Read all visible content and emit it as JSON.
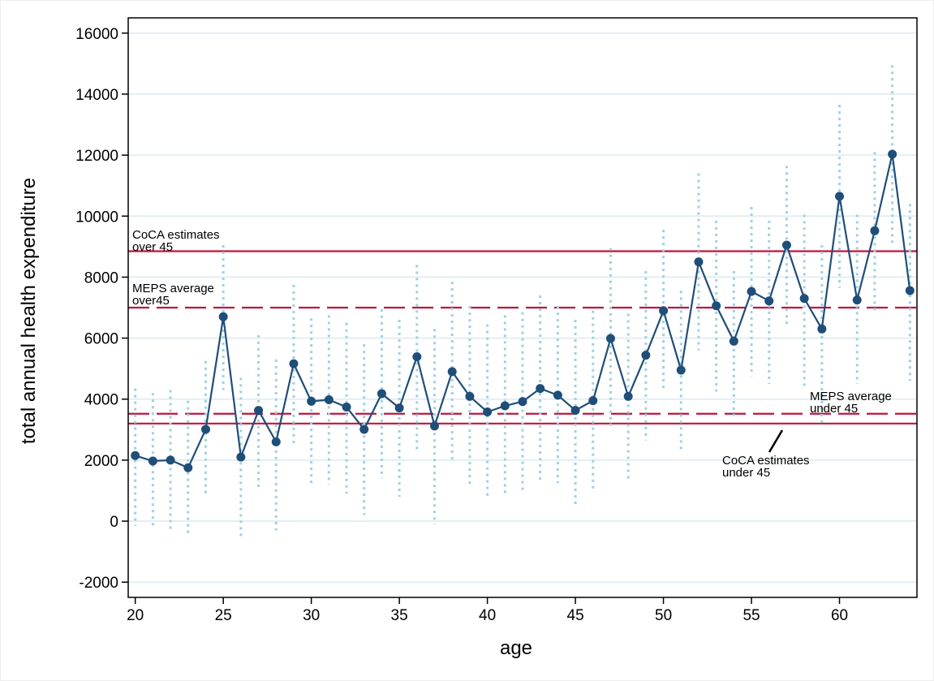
{
  "chart_data": {
    "type": "line",
    "title": "",
    "xlabel": "age",
    "ylabel": "total annual health expenditure",
    "xlim": [
      19.6,
      64.4
    ],
    "ylim": [
      -2500,
      16500
    ],
    "xticks": [
      20,
      25,
      30,
      35,
      40,
      45,
      50,
      55,
      60
    ],
    "yticks": [
      -2000,
      0,
      2000,
      4000,
      6000,
      8000,
      10000,
      12000,
      14000,
      16000
    ],
    "grid": true,
    "colors": {
      "series": "#1f4e79",
      "ci": "#9fd0e4",
      "reference": "#c0143c",
      "grid": "#e4eef2"
    },
    "x": [
      20,
      21,
      22,
      23,
      24,
      25,
      26,
      27,
      28,
      29,
      30,
      31,
      32,
      33,
      34,
      35,
      36,
      37,
      38,
      39,
      40,
      41,
      42,
      43,
      44,
      45,
      46,
      47,
      48,
      49,
      50,
      51,
      52,
      53,
      54,
      55,
      56,
      57,
      58,
      59,
      60,
      61,
      62,
      63,
      64
    ],
    "series": [
      {
        "name": "",
        "values": [
          2150,
          1970,
          2000,
          1750,
          3010,
          6700,
          2100,
          3630,
          2600,
          5160,
          3930,
          3980,
          3740,
          3010,
          4180,
          3710,
          5390,
          3120,
          4900,
          4090,
          3580,
          3780,
          3920,
          4350,
          4130,
          3630,
          3950,
          5990,
          4090,
          5440,
          6900,
          4950,
          8500,
          7060,
          5900,
          7530,
          7220,
          9050,
          7300,
          6300,
          10650,
          7250,
          9520,
          12030,
          7560
        ],
        "ci_low": [
          -150,
          -250,
          -300,
          -500,
          800,
          4300,
          -600,
          1100,
          -300,
          2500,
          1200,
          1200,
          900,
          200,
          1400,
          800,
          2350,
          -100,
          1950,
          1150,
          700,
          800,
          1000,
          1300,
          1250,
          500,
          1000,
          3000,
          1400,
          2650,
          4250,
          2350,
          5600,
          4250,
          3450,
          4750,
          4500,
          6350,
          4350,
          3200,
          7650,
          4500,
          6800,
          9100,
          4600
        ],
        "ci_high": [
          4350,
          4200,
          4300,
          3950,
          5250,
          9050,
          4700,
          6100,
          5300,
          7750,
          6650,
          6750,
          6500,
          5800,
          6950,
          6600,
          8400,
          6300,
          7850,
          7050,
          6450,
          6750,
          6850,
          7400,
          7050,
          6600,
          6900,
          8950,
          6800,
          8200,
          9550,
          7550,
          11400,
          9850,
          8200,
          10300,
          9850,
          11650,
          10050,
          9050,
          13650,
          10050,
          12100,
          14950,
          10400
        ]
      }
    ],
    "reference_lines": [
      {
        "y": 8850,
        "style": "solid",
        "label": [
          "CoCA estimates",
          "over 45"
        ]
      },
      {
        "y": 7000,
        "style": "dashed",
        "label": [
          "MEPS average",
          "over45"
        ]
      },
      {
        "y": 3520,
        "style": "dashed",
        "label": [
          "MEPS average",
          "under 45"
        ]
      },
      {
        "y": 3200,
        "style": "solid",
        "label": [
          "CoCA estimates",
          "under 45"
        ]
      }
    ]
  }
}
